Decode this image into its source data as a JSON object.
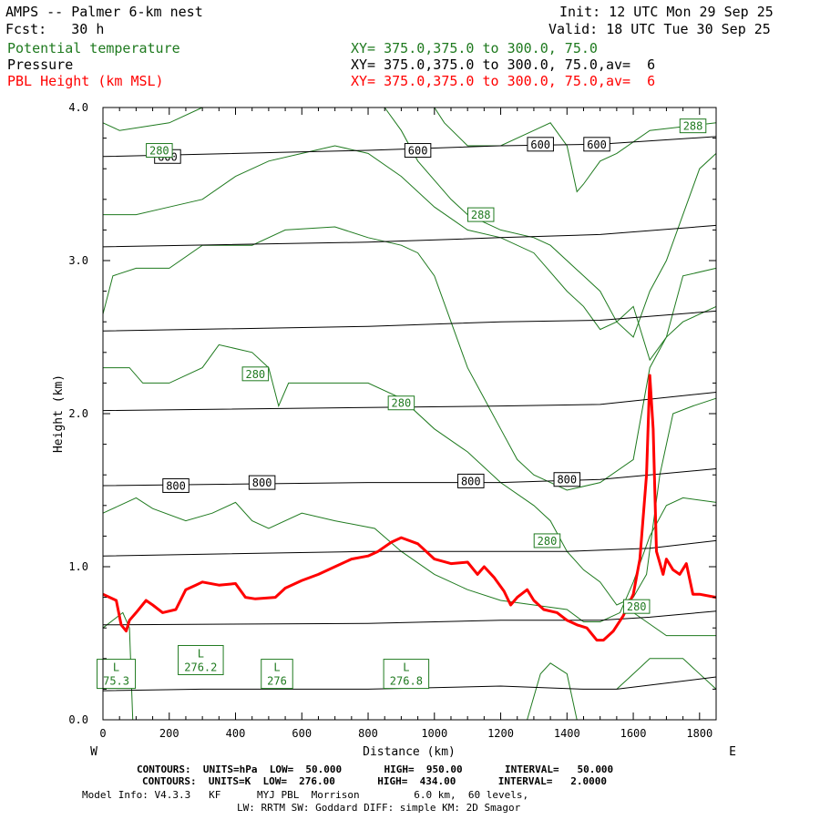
{
  "header": {
    "title": "AMPS -- Palmer 6-km nest",
    "fcst": "Fcst:   30 h",
    "init": "Init: 12 UTC Mon 29 Sep 25",
    "valid": "Valid: 18 UTC Tue 30 Sep 25",
    "field1_name": "Potential temperature",
    "field1_xy": "XY= 375.0,375.0 to 300.0, 75.0",
    "field2_name": "Pressure",
    "field2_xy": "XY= 375.0,375.0 to 300.0, 75.0,av=  6",
    "field3_name": "PBL Height (km MSL)",
    "field3_xy": "XY= 375.0,375.0 to 300.0, 75.0,av=  6"
  },
  "footer": {
    "contours_pressure": "CONTOURS:  UNITS=hPa  LOW=  50.000       HIGH=  950.00       INTERVAL=   50.000",
    "contours_theta": "CONTOURS:  UNITS=K  LOW=  276.00       HIGH=  434.00       INTERVAL=   2.0000",
    "model_info": "Model Info: V4.3.3   KF      MYJ PBL  Morrison         6.0 km,  60 levels,",
    "model_info2": "LW: RRTM SW: Goddard DIFF: simple KM: 2D Smagor"
  },
  "colors": {
    "theta": "#1f7a1f",
    "pressure": "#000000",
    "pbl": "#ff0000"
  },
  "chart_data": {
    "type": "line",
    "title": "Potential temperature / Pressure / PBL Height cross section",
    "xlabel": "Distance (km)",
    "ylabel": "Height (km)",
    "xlim": [
      0,
      1850
    ],
    "ylim": [
      0,
      4
    ],
    "xticks": [
      0,
      200,
      400,
      600,
      800,
      1000,
      1200,
      1400,
      1600,
      1800
    ],
    "yticks": [
      0.0,
      1.0,
      2.0,
      3.0,
      4.0
    ],
    "ytick_labels": [
      "0.0",
      "1.0",
      "2.0",
      "3.0",
      "4.0"
    ],
    "left_end_label": "W",
    "right_end_label": "E",
    "pressure_lines": [
      {
        "points": [
          [
            0,
            0.19
          ],
          [
            300,
            0.2
          ],
          [
            800,
            0.2
          ],
          [
            1200,
            0.22
          ],
          [
            1450,
            0.2
          ],
          [
            1550,
            0.2
          ],
          [
            1700,
            0.24
          ],
          [
            1850,
            0.28
          ]
        ]
      },
      {
        "points": [
          [
            0,
            0.62
          ],
          [
            800,
            0.63
          ],
          [
            1200,
            0.65
          ],
          [
            1500,
            0.65
          ],
          [
            1650,
            0.67
          ],
          [
            1850,
            0.71
          ]
        ]
      },
      {
        "points": [
          [
            0,
            1.07
          ],
          [
            800,
            1.1
          ],
          [
            1400,
            1.1
          ],
          [
            1650,
            1.12
          ],
          [
            1850,
            1.17
          ]
        ]
      },
      {
        "points": [
          [
            0,
            1.53
          ],
          [
            800,
            1.55
          ],
          [
            1200,
            1.55
          ],
          [
            1500,
            1.57
          ],
          [
            1850,
            1.64
          ]
        ]
      },
      {
        "points": [
          [
            0,
            2.02
          ],
          [
            800,
            2.04
          ],
          [
            1200,
            2.05
          ],
          [
            1500,
            2.06
          ],
          [
            1850,
            2.14
          ]
        ]
      },
      {
        "points": [
          [
            0,
            2.54
          ],
          [
            800,
            2.57
          ],
          [
            1200,
            2.6
          ],
          [
            1500,
            2.61
          ],
          [
            1850,
            2.67
          ]
        ]
      },
      {
        "points": [
          [
            0,
            3.09
          ],
          [
            800,
            3.12
          ],
          [
            1200,
            3.15
          ],
          [
            1500,
            3.17
          ],
          [
            1850,
            3.23
          ]
        ]
      },
      {
        "points": [
          [
            0,
            3.68
          ],
          [
            800,
            3.72
          ],
          [
            1200,
            3.75
          ],
          [
            1500,
            3.76
          ],
          [
            1850,
            3.81
          ]
        ]
      }
    ],
    "theta_lines": [
      {
        "points": [
          [
            0,
            0.6
          ],
          [
            60,
            0.7
          ],
          [
            80,
            0.6
          ],
          [
            90,
            0.0
          ]
        ]
      },
      {
        "points": [
          [
            0,
            1.35
          ],
          [
            50,
            1.4
          ],
          [
            100,
            1.45
          ],
          [
            150,
            1.38
          ],
          [
            250,
            1.3
          ],
          [
            330,
            1.35
          ],
          [
            400,
            1.42
          ],
          [
            450,
            1.3
          ],
          [
            500,
            1.25
          ],
          [
            600,
            1.35
          ],
          [
            700,
            1.3
          ],
          [
            820,
            1.25
          ],
          [
            900,
            1.1
          ],
          [
            1000,
            0.95
          ],
          [
            1100,
            0.85
          ],
          [
            1200,
            0.78
          ],
          [
            1300,
            0.75
          ],
          [
            1400,
            0.72
          ],
          [
            1450,
            0.64
          ],
          [
            1500,
            0.64
          ],
          [
            1560,
            0.7
          ],
          [
            1600,
            0.9
          ],
          [
            1650,
            1.2
          ],
          [
            1700,
            1.4
          ],
          [
            1750,
            1.45
          ],
          [
            1850,
            1.42
          ]
        ]
      },
      {
        "points": [
          [
            0,
            2.3
          ],
          [
            80,
            2.3
          ],
          [
            120,
            2.2
          ],
          [
            200,
            2.2
          ],
          [
            300,
            2.3
          ],
          [
            350,
            2.45
          ],
          [
            450,
            2.4
          ],
          [
            500,
            2.3
          ],
          [
            530,
            2.05
          ],
          [
            560,
            2.2
          ],
          [
            650,
            2.2
          ],
          [
            800,
            2.2
          ],
          [
            900,
            2.1
          ],
          [
            1000,
            1.9
          ],
          [
            1100,
            1.75
          ],
          [
            1200,
            1.55
          ],
          [
            1300,
            1.4
          ],
          [
            1350,
            1.3
          ],
          [
            1400,
            1.1
          ],
          [
            1450,
            0.98
          ],
          [
            1500,
            0.9
          ],
          [
            1550,
            0.75
          ],
          [
            1600,
            0.8
          ],
          [
            1640,
            0.95
          ],
          [
            1680,
            1.6
          ],
          [
            1720,
            2.0
          ],
          [
            1780,
            2.05
          ],
          [
            1850,
            2.1
          ]
        ]
      },
      {
        "points": [
          [
            0,
            2.65
          ],
          [
            30,
            2.9
          ],
          [
            100,
            2.95
          ],
          [
            200,
            2.95
          ],
          [
            300,
            3.1
          ],
          [
            450,
            3.1
          ],
          [
            550,
            3.2
          ],
          [
            700,
            3.22
          ],
          [
            800,
            3.15
          ],
          [
            900,
            3.1
          ],
          [
            950,
            3.05
          ],
          [
            1000,
            2.9
          ],
          [
            1050,
            2.6
          ],
          [
            1100,
            2.3
          ],
          [
            1150,
            2.1
          ],
          [
            1200,
            1.9
          ],
          [
            1250,
            1.7
          ],
          [
            1300,
            1.6
          ],
          [
            1350,
            1.55
          ],
          [
            1400,
            1.5
          ],
          [
            1500,
            1.55
          ],
          [
            1600,
            1.7
          ],
          [
            1650,
            2.3
          ],
          [
            1700,
            2.5
          ],
          [
            1750,
            2.6
          ],
          [
            1850,
            2.7
          ]
        ]
      },
      {
        "points": [
          [
            0,
            3.3
          ],
          [
            100,
            3.3
          ],
          [
            200,
            3.35
          ],
          [
            300,
            3.4
          ],
          [
            400,
            3.55
          ],
          [
            500,
            3.65
          ],
          [
            600,
            3.7
          ],
          [
            700,
            3.75
          ],
          [
            800,
            3.7
          ],
          [
            900,
            3.55
          ],
          [
            1000,
            3.35
          ],
          [
            1100,
            3.2
          ],
          [
            1200,
            3.15
          ],
          [
            1300,
            3.05
          ],
          [
            1400,
            2.8
          ],
          [
            1450,
            2.7
          ],
          [
            1500,
            2.55
          ],
          [
            1550,
            2.6
          ],
          [
            1600,
            2.7
          ],
          [
            1650,
            2.35
          ],
          [
            1700,
            2.5
          ],
          [
            1750,
            2.9
          ],
          [
            1850,
            2.95
          ]
        ]
      },
      {
        "points": [
          [
            0,
            3.9
          ],
          [
            50,
            3.85
          ],
          [
            200,
            3.9
          ],
          [
            300,
            4.0
          ]
        ]
      },
      {
        "points": [
          [
            850,
            4.0
          ],
          [
            900,
            3.85
          ],
          [
            950,
            3.65
          ],
          [
            1050,
            3.4
          ],
          [
            1100,
            3.3
          ],
          [
            1200,
            3.2
          ],
          [
            1300,
            3.15
          ],
          [
            1350,
            3.1
          ],
          [
            1450,
            2.9
          ],
          [
            1500,
            2.8
          ],
          [
            1550,
            2.6
          ],
          [
            1600,
            2.5
          ],
          [
            1650,
            2.8
          ],
          [
            1700,
            3.0
          ],
          [
            1750,
            3.3
          ],
          [
            1800,
            3.6
          ],
          [
            1850,
            3.7
          ]
        ]
      },
      {
        "points": [
          [
            1000,
            4.0
          ],
          [
            1030,
            3.9
          ],
          [
            1100,
            3.75
          ],
          [
            1200,
            3.75
          ],
          [
            1300,
            3.85
          ],
          [
            1350,
            3.9
          ],
          [
            1400,
            3.75
          ],
          [
            1430,
            3.45
          ],
          [
            1450,
            3.5
          ],
          [
            1500,
            3.65
          ],
          [
            1550,
            3.7
          ],
          [
            1650,
            3.85
          ],
          [
            1850,
            3.9
          ]
        ]
      },
      {
        "points": [
          [
            1280,
            0.0
          ],
          [
            1320,
            0.3
          ],
          [
            1350,
            0.37
          ],
          [
            1400,
            0.3
          ],
          [
            1430,
            0.0
          ]
        ]
      },
      {
        "points": [
          [
            1550,
            0.2
          ],
          [
            1600,
            0.3
          ],
          [
            1650,
            0.4
          ],
          [
            1750,
            0.4
          ],
          [
            1850,
            0.2
          ]
        ]
      },
      {
        "points": [
          [
            1600,
            0.7
          ],
          [
            1700,
            0.55
          ],
          [
            1850,
            0.55
          ]
        ]
      }
    ],
    "pbl_height": {
      "name": "PBL Height (km MSL)",
      "points": [
        [
          0,
          0.82
        ],
        [
          20,
          0.8
        ],
        [
          40,
          0.78
        ],
        [
          55,
          0.62
        ],
        [
          70,
          0.58
        ],
        [
          80,
          0.65
        ],
        [
          100,
          0.7
        ],
        [
          130,
          0.78
        ],
        [
          150,
          0.75
        ],
        [
          180,
          0.7
        ],
        [
          220,
          0.72
        ],
        [
          250,
          0.85
        ],
        [
          280,
          0.88
        ],
        [
          300,
          0.9
        ],
        [
          350,
          0.88
        ],
        [
          400,
          0.89
        ],
        [
          430,
          0.8
        ],
        [
          460,
          0.79
        ],
        [
          520,
          0.8
        ],
        [
          550,
          0.86
        ],
        [
          600,
          0.91
        ],
        [
          650,
          0.95
        ],
        [
          700,
          1.0
        ],
        [
          750,
          1.05
        ],
        [
          800,
          1.07
        ],
        [
          830,
          1.1
        ],
        [
          870,
          1.16
        ],
        [
          900,
          1.19
        ],
        [
          950,
          1.15
        ],
        [
          1000,
          1.05
        ],
        [
          1050,
          1.02
        ],
        [
          1100,
          1.03
        ],
        [
          1130,
          0.95
        ],
        [
          1150,
          1.0
        ],
        [
          1180,
          0.93
        ],
        [
          1210,
          0.84
        ],
        [
          1230,
          0.75
        ],
        [
          1250,
          0.8
        ],
        [
          1280,
          0.85
        ],
        [
          1300,
          0.78
        ],
        [
          1330,
          0.72
        ],
        [
          1370,
          0.7
        ],
        [
          1400,
          0.65
        ],
        [
          1430,
          0.62
        ],
        [
          1460,
          0.6
        ],
        [
          1490,
          0.52
        ],
        [
          1510,
          0.52
        ],
        [
          1540,
          0.58
        ],
        [
          1570,
          0.68
        ],
        [
          1600,
          0.82
        ],
        [
          1620,
          1.05
        ],
        [
          1640,
          1.6
        ],
        [
          1650,
          2.25
        ],
        [
          1660,
          1.9
        ],
        [
          1670,
          1.1
        ],
        [
          1690,
          0.95
        ],
        [
          1700,
          1.05
        ],
        [
          1720,
          0.98
        ],
        [
          1740,
          0.95
        ],
        [
          1760,
          1.02
        ],
        [
          1780,
          0.82
        ],
        [
          1800,
          0.82
        ],
        [
          1850,
          0.8
        ]
      ]
    },
    "pressure_labels": [
      {
        "text": "600",
        "x": 195,
        "y": 3.68
      },
      {
        "text": "600",
        "x": 950,
        "y": 3.72
      },
      {
        "text": "600",
        "x": 1320,
        "y": 3.76
      },
      {
        "text": "600",
        "x": 1490,
        "y": 3.76
      },
      {
        "text": "800",
        "x": 220,
        "y": 1.53
      },
      {
        "text": "800",
        "x": 480,
        "y": 1.55
      },
      {
        "text": "800",
        "x": 1110,
        "y": 1.56
      },
      {
        "text": "800",
        "x": 1400,
        "y": 1.57
      }
    ],
    "theta_labels": [
      {
        "text": "288",
        "x": 1780,
        "y": 3.88
      },
      {
        "text": "288",
        "x": 1140,
        "y": 3.3
      },
      {
        "text": "280",
        "x": 460,
        "y": 2.26
      },
      {
        "text": "280",
        "x": 900,
        "y": 2.07
      },
      {
        "text": "280",
        "x": 1340,
        "y": 1.17
      },
      {
        "text": "280",
        "x": 1610,
        "y": 0.74
      },
      {
        "text": "280",
        "x": 170,
        "y": 3.72
      }
    ],
    "min_labels": [
      {
        "letter": "L",
        "value": "276.2",
        "x": 295,
        "y": 0.39
      },
      {
        "letter": "L",
        "value": "276",
        "x": 525,
        "y": 0.3
      },
      {
        "letter": "L",
        "value": "276.8",
        "x": 915,
        "y": 0.3
      },
      {
        "letter": "L",
        "value": "75.3",
        "x": 40,
        "y": 0.3
      }
    ]
  }
}
